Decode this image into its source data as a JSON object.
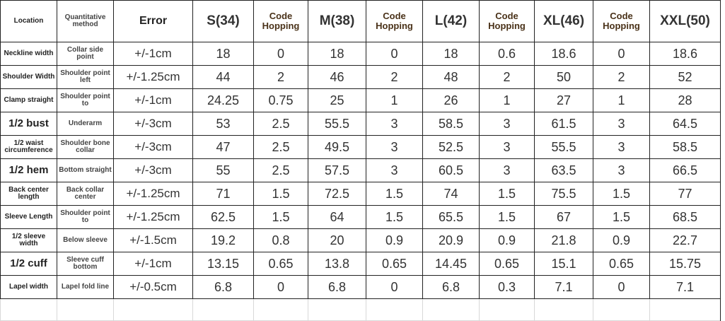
{
  "table": {
    "header": [
      "Location",
      "Quantitative method",
      "Error",
      "S(34)",
      "Code Hopping",
      "M(38)",
      "Code Hopping",
      "L(42)",
      "Code Hopping",
      "XL(46)",
      "Code Hopping",
      "XXL(50)"
    ],
    "rows": [
      [
        "Neckline width",
        "Collar side point",
        "+/-1cm",
        "18",
        "0",
        "18",
        "0",
        "18",
        "0.6",
        "18.6",
        "0",
        "18.6"
      ],
      [
        "Shoulder Width",
        "Shoulder point left",
        "+/-1.25cm",
        "44",
        "2",
        "46",
        "2",
        "48",
        "2",
        "50",
        "2",
        "52"
      ],
      [
        "Clamp straight",
        "Shoulder point to",
        "+/-1cm",
        "24.25",
        "0.75",
        "25",
        "1",
        "26",
        "1",
        "27",
        "1",
        "28"
      ],
      [
        "1/2 bust",
        "Underarm",
        "+/-3cm",
        "53",
        "2.5",
        "55.5",
        "3",
        "58.5",
        "3",
        "61.5",
        "3",
        "64.5"
      ],
      [
        "1/2 waist circumference",
        "Shoulder bone collar",
        "+/-3cm",
        "47",
        "2.5",
        "49.5",
        "3",
        "52.5",
        "3",
        "55.5",
        "3",
        "58.5"
      ],
      [
        "1/2 hem",
        "Bottom straight",
        "+/-3cm",
        "55",
        "2.5",
        "57.5",
        "3",
        "60.5",
        "3",
        "63.5",
        "3",
        "66.5"
      ],
      [
        "Back center length",
        "Back collar center",
        "+/-1.25cm",
        "71",
        "1.5",
        "72.5",
        "1.5",
        "74",
        "1.5",
        "75.5",
        "1.5",
        "77"
      ],
      [
        "Sleeve Length",
        "Shoulder point to",
        "+/-1.25cm",
        "62.5",
        "1.5",
        "64",
        "1.5",
        "65.5",
        "1.5",
        "67",
        "1.5",
        "68.5"
      ],
      [
        "1/2 sleeve width",
        "Below sleeve",
        "+/-1.5cm",
        "19.2",
        "0.8",
        "20",
        "0.9",
        "20.9",
        "0.9",
        "21.8",
        "0.9",
        "22.7"
      ],
      [
        "1/2 cuff",
        "Sleeve cuff bottom",
        "+/-1cm",
        "13.15",
        "0.65",
        "13.8",
        "0.65",
        "14.45",
        "0.65",
        "15.1",
        "0.65",
        "15.75"
      ],
      [
        "Lapel width",
        "Lapel fold line",
        "+/-0.5cm",
        "6.8",
        "0",
        "6.8",
        "0",
        "6.8",
        "0.3",
        "7.1",
        "0",
        "7.1"
      ]
    ]
  }
}
